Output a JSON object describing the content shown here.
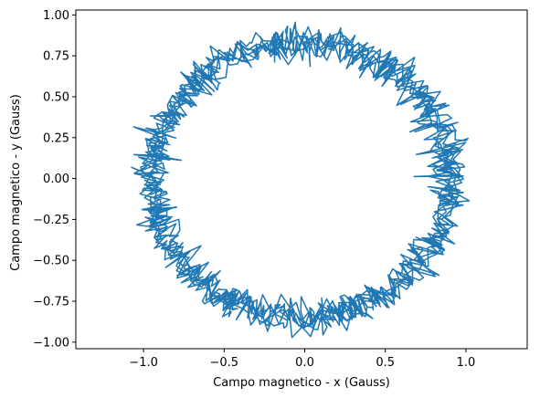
{
  "chart_data": {
    "type": "line",
    "title": "",
    "xlabel": "Campo magnetico - x (Gauss)",
    "ylabel": "Campo magnetico - y (Gauss)",
    "xlim": [
      -1.42,
      1.38
    ],
    "ylim": [
      -1.04,
      1.03
    ],
    "xticks": [
      -1.0,
      -0.5,
      0.0,
      0.5,
      1.0
    ],
    "xtick_labels": [
      "−1.0",
      "−0.5",
      "0.0",
      "0.5",
      "1.0"
    ],
    "yticks": [
      -1.0,
      -0.75,
      -0.5,
      -0.25,
      0.0,
      0.25,
      0.5,
      0.75,
      1.0
    ],
    "ytick_labels": [
      "−1.00",
      "−0.75",
      "−0.50",
      "−0.25",
      "0.00",
      "0.25",
      "0.50",
      "0.75",
      "1.00"
    ],
    "grid": false,
    "line_color": "#1f77b4",
    "series": [
      {
        "description_center": [
          -0.02,
          -0.01
        ],
        "radius_x": 0.92,
        "radius_y": 0.84,
        "noise_amplitude": 0.06,
        "points": 1500
      }
    ]
  }
}
